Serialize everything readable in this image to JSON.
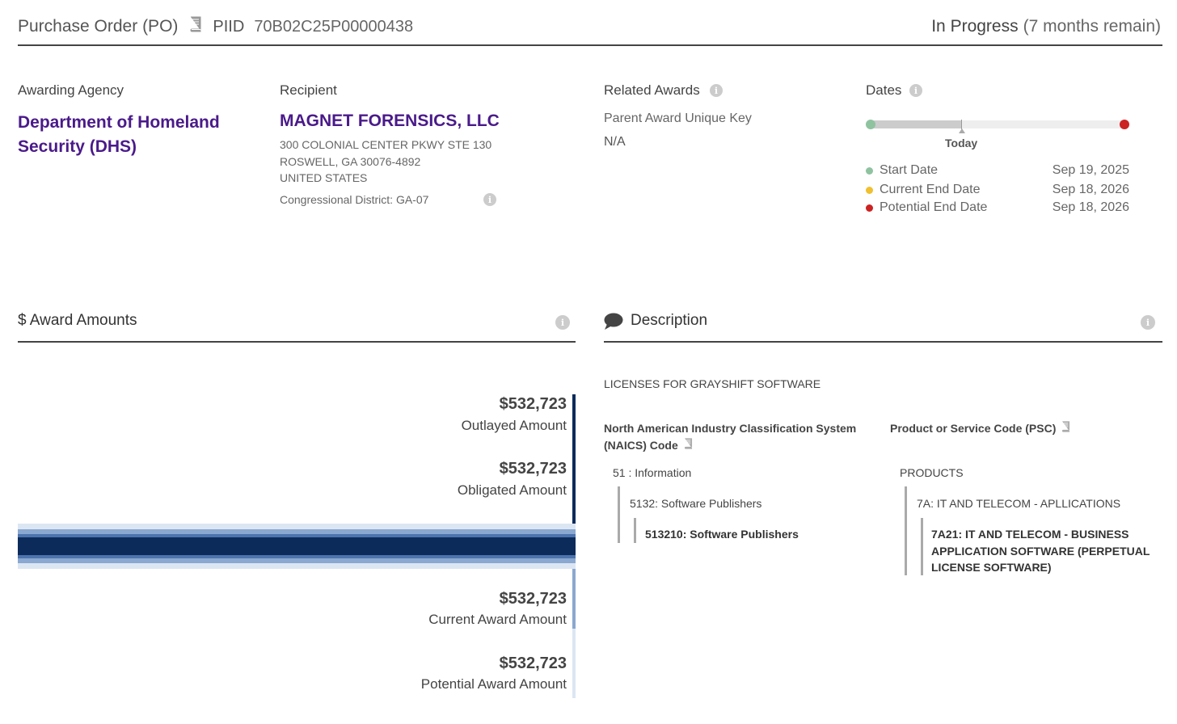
{
  "header": {
    "award_type": "Purchase Order (PO)",
    "piid_label": "PIID",
    "piid": "70B02C25P00000438",
    "status": "In Progress",
    "status_remaining": "(7 months remain)"
  },
  "awarding_agency": {
    "label": "Awarding Agency",
    "name_line1": "Department of Homeland",
    "name_line2": "Security (DHS)"
  },
  "recipient": {
    "label": "Recipient",
    "name": "MAGNET FORENSICS, LLC",
    "address_line1": "300 COLONIAL CENTER PKWY STE 130",
    "address_line2": "ROSWELL, GA 30076-4892",
    "address_line3": "UNITED STATES",
    "congressional_district": "Congressional District: GA-07"
  },
  "related_awards": {
    "label": "Related Awards",
    "parent_key_label": "Parent Award Unique Key",
    "parent_key_value": "N/A"
  },
  "dates": {
    "label": "Dates",
    "today_label": "Today",
    "progress_fraction": 0.36,
    "items": [
      {
        "label": "Start Date",
        "value": "Sep 19, 2025",
        "color": "#8fc3a0"
      },
      {
        "label": "Current End Date",
        "value": "Sep 18, 2026",
        "color": "#f0c030"
      },
      {
        "label": "Potential End Date",
        "value": "Sep 18, 2026",
        "color": "#cc2222"
      }
    ]
  },
  "award_amounts": {
    "title": "$ Award Amounts",
    "items": [
      {
        "value": "$532,723",
        "label": "Outlayed Amount",
        "color": "#0c2b5b"
      },
      {
        "value": "$532,723",
        "label": "Obligated Amount",
        "color": "#0c2b5b"
      },
      {
        "value": "$532,723",
        "label": "Current Award Amount",
        "color": "#8aa8d0"
      },
      {
        "value": "$532,723",
        "label": "Potential Award Amount",
        "color": "#dce6f3"
      }
    ]
  },
  "description": {
    "title": "Description",
    "text": "LICENSES FOR GRAYSHIFT SOFTWARE",
    "naics": {
      "heading_line1": "North American Industry Classification System",
      "heading_line2": "(NAICS)  Code",
      "level1": "51 : Information",
      "level2": "5132: Software Publishers",
      "level3": "513210: Software Publishers"
    },
    "psc": {
      "heading": "Product or Service Code  (PSC)",
      "level1": "PRODUCTS",
      "level2": "7A: IT AND TELECOM - APLLICATIONS",
      "level3_line1": "7A21: IT AND TELECOM - BUSINESS",
      "level3_line2": "APPLICATION SOFTWARE (PERPETUAL",
      "level3_line3": "LICENSE SOFTWARE)"
    }
  },
  "icons": {
    "book": "book-icon",
    "info": "info-icon",
    "comment": "speech-bubble-icon"
  }
}
